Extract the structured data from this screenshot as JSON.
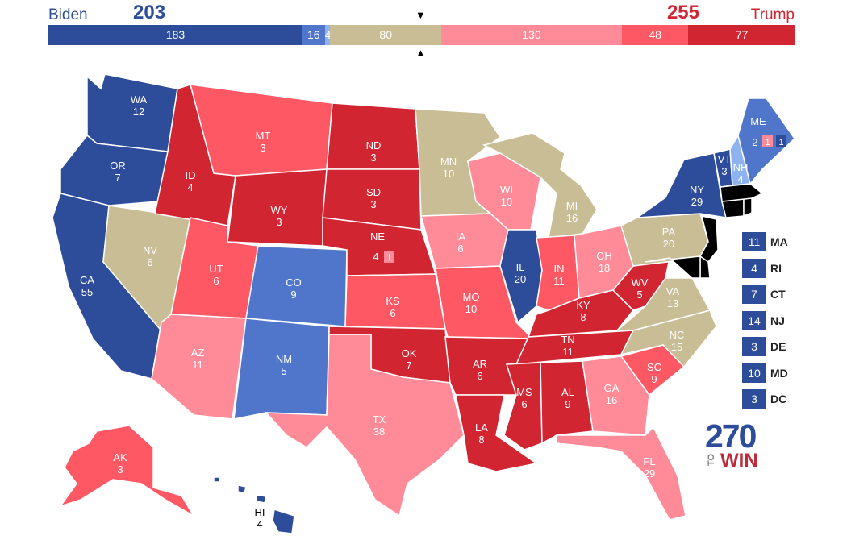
{
  "header": {
    "left_candidate": "Biden",
    "left_total": "203",
    "right_candidate": "Trump",
    "right_total": "255",
    "segments": [
      {
        "label": "183",
        "value": 183,
        "color": "#2d4c99"
      },
      {
        "label": "16",
        "value": 16,
        "color": "#5076cc"
      },
      {
        "label": "4",
        "value": 4,
        "color": "#8fb2f0"
      },
      {
        "label": "80",
        "value": 80,
        "color": "#c9bd96"
      },
      {
        "label": "130",
        "value": 130,
        "color": "#ff8b98"
      },
      {
        "label": "48",
        "value": 48,
        "color": "#ff5865"
      },
      {
        "label": "77",
        "value": 77,
        "color": "#d22532"
      }
    ]
  },
  "colors": {
    "safe_d": "#2d4c99",
    "likely_d": "#5076cc",
    "lean_d": "#8fb2f0",
    "tossup": "#c9bd96",
    "lean_r": "#ff8b98",
    "likely_r": "#ff5865",
    "safe_r": "#d22532"
  },
  "states": [
    {
      "abbr": "WA",
      "ev": "12",
      "rating": "safe_d"
    },
    {
      "abbr": "OR",
      "ev": "7",
      "rating": "safe_d"
    },
    {
      "abbr": "CA",
      "ev": "55",
      "rating": "safe_d"
    },
    {
      "abbr": "NV",
      "ev": "6",
      "rating": "tossup"
    },
    {
      "abbr": "ID",
      "ev": "4",
      "rating": "safe_r"
    },
    {
      "abbr": "MT",
      "ev": "3",
      "rating": "likely_r"
    },
    {
      "abbr": "WY",
      "ev": "3",
      "rating": "safe_r"
    },
    {
      "abbr": "UT",
      "ev": "6",
      "rating": "likely_r"
    },
    {
      "abbr": "AZ",
      "ev": "11",
      "rating": "lean_r"
    },
    {
      "abbr": "CO",
      "ev": "9",
      "rating": "likely_d"
    },
    {
      "abbr": "NM",
      "ev": "5",
      "rating": "likely_d"
    },
    {
      "abbr": "ND",
      "ev": "3",
      "rating": "safe_r"
    },
    {
      "abbr": "SD",
      "ev": "3",
      "rating": "safe_r"
    },
    {
      "abbr": "NE",
      "ev": "4",
      "rating": "safe_r"
    },
    {
      "abbr": "KS",
      "ev": "6",
      "rating": "likely_r"
    },
    {
      "abbr": "OK",
      "ev": "7",
      "rating": "safe_r"
    },
    {
      "abbr": "TX",
      "ev": "38",
      "rating": "lean_r"
    },
    {
      "abbr": "MN",
      "ev": "10",
      "rating": "tossup"
    },
    {
      "abbr": "IA",
      "ev": "6",
      "rating": "lean_r"
    },
    {
      "abbr": "MO",
      "ev": "10",
      "rating": "likely_r"
    },
    {
      "abbr": "AR",
      "ev": "6",
      "rating": "safe_r"
    },
    {
      "abbr": "LA",
      "ev": "8",
      "rating": "safe_r"
    },
    {
      "abbr": "WI",
      "ev": "10",
      "rating": "lean_r"
    },
    {
      "abbr": "IL",
      "ev": "20",
      "rating": "safe_d"
    },
    {
      "abbr": "MI",
      "ev": "16",
      "rating": "tossup"
    },
    {
      "abbr": "IN",
      "ev": "11",
      "rating": "likely_r"
    },
    {
      "abbr": "OH",
      "ev": "18",
      "rating": "lean_r"
    },
    {
      "abbr": "KY",
      "ev": "8",
      "rating": "safe_r"
    },
    {
      "abbr": "TN",
      "ev": "11",
      "rating": "safe_r"
    },
    {
      "abbr": "MS",
      "ev": "6",
      "rating": "safe_r"
    },
    {
      "abbr": "AL",
      "ev": "9",
      "rating": "safe_r"
    },
    {
      "abbr": "GA",
      "ev": "16",
      "rating": "lean_r"
    },
    {
      "abbr": "FL",
      "ev": "29",
      "rating": "lean_r"
    },
    {
      "abbr": "SC",
      "ev": "9",
      "rating": "likely_r"
    },
    {
      "abbr": "NC",
      "ev": "15",
      "rating": "tossup"
    },
    {
      "abbr": "VA",
      "ev": "13",
      "rating": "tossup"
    },
    {
      "abbr": "WV",
      "ev": "5",
      "rating": "safe_r"
    },
    {
      "abbr": "PA",
      "ev": "20",
      "rating": "tossup"
    },
    {
      "abbr": "NY",
      "ev": "29",
      "rating": "safe_d"
    },
    {
      "abbr": "VT",
      "ev": "3",
      "rating": "safe_d"
    },
    {
      "abbr": "NH",
      "ev": "4",
      "rating": "lean_d"
    },
    {
      "abbr": "ME",
      "ev": "2",
      "rating": "likely_d"
    },
    {
      "abbr": "AK",
      "ev": "3",
      "rating": "likely_r"
    },
    {
      "abbr": "HI",
      "ev": "4",
      "rating": "safe_d"
    }
  ],
  "district_boxes": {
    "me_cd2": "1",
    "me_cd1": "1",
    "ne_cd2": "1"
  },
  "small_states": [
    {
      "ev": "11",
      "abbr": "MA"
    },
    {
      "ev": "4",
      "abbr": "RI"
    },
    {
      "ev": "7",
      "abbr": "CT"
    },
    {
      "ev": "14",
      "abbr": "NJ"
    },
    {
      "ev": "3",
      "abbr": "DE"
    },
    {
      "ev": "10",
      "abbr": "MD"
    },
    {
      "ev": "3",
      "abbr": "DC"
    }
  ],
  "logo": {
    "number": "270",
    "to": "TO",
    "win": "WIN"
  }
}
